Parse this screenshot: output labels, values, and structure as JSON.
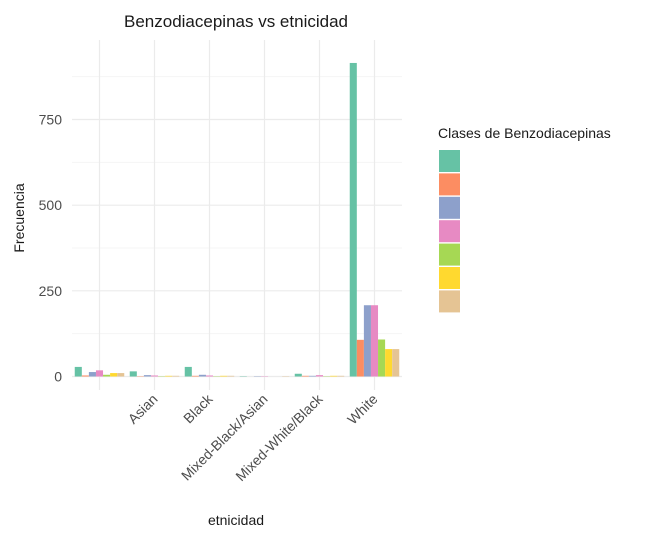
{
  "chart_data": {
    "type": "bar",
    "title": "Benzodiacepinas vs etnicidad",
    "xlabel": "etnicidad",
    "ylabel": "Frecuencia",
    "categories": [
      "",
      "Asian",
      "Black",
      "Mixed-Black/Asian",
      "Mixed-White/Black",
      "White"
    ],
    "ylim": [
      0,
      950
    ],
    "yticks": [
      0,
      250,
      500,
      750
    ],
    "grid": true,
    "legend": {
      "title": "Clases de Benzodiacepinas",
      "placement": "right"
    },
    "series": [
      {
        "name": "",
        "color": "#66c2a5",
        "values": [
          28,
          15,
          28,
          1,
          8,
          915
        ]
      },
      {
        "name": "",
        "color": "#fc8d62",
        "values": [
          3,
          1,
          2,
          0,
          2,
          107
        ]
      },
      {
        "name": "",
        "color": "#8da0cb",
        "values": [
          13,
          4,
          5,
          1,
          2,
          208
        ]
      },
      {
        "name": "",
        "color": "#e78ac3",
        "values": [
          18,
          3,
          3,
          1,
          4,
          208
        ]
      },
      {
        "name": "",
        "color": "#a6d854",
        "values": [
          5,
          1,
          1,
          0,
          1,
          108
        ]
      },
      {
        "name": "",
        "color": "#ffd92f",
        "values": [
          10,
          2,
          2,
          0,
          2,
          80
        ]
      },
      {
        "name": "",
        "color": "#e5c494",
        "values": [
          10,
          2,
          2,
          1,
          2,
          80
        ]
      }
    ]
  }
}
